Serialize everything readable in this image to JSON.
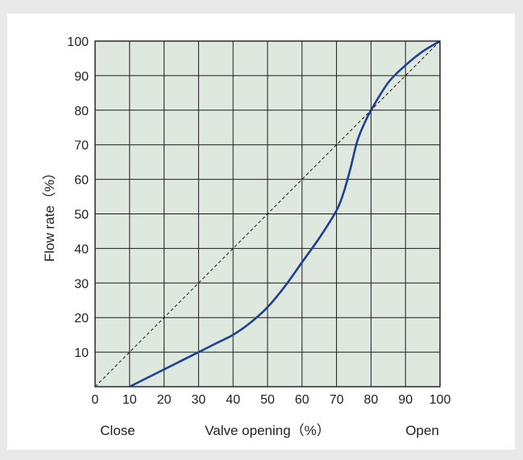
{
  "chart_data": {
    "type": "line",
    "title": "",
    "xlabel": "Valve opening（%）",
    "ylabel": "Flow rate（%）",
    "x_end_labels": {
      "left": "Close",
      "right": "Open"
    },
    "xlim": [
      0,
      100
    ],
    "ylim": [
      0,
      100
    ],
    "x_ticks": [
      0,
      10,
      20,
      30,
      40,
      50,
      60,
      70,
      80,
      90,
      100
    ],
    "y_ticks": [
      10,
      20,
      30,
      40,
      50,
      60,
      70,
      80,
      90,
      100
    ],
    "grid": true,
    "colors": {
      "plot_background": "#dfe8df",
      "grid": "#1a1a1a",
      "curve": "#1f3f94",
      "reference_line": "#1a1a1a",
      "page_background": "#e9e9ea"
    },
    "series": [
      {
        "style": "solid",
        "x": [
          10,
          15,
          20,
          25,
          30,
          35,
          40,
          45,
          50,
          55,
          60,
          65,
          70,
          72,
          74,
          76,
          78,
          80,
          85,
          90,
          95,
          100
        ],
        "y": [
          0,
          2.5,
          5,
          7.5,
          10,
          12.5,
          15,
          18.5,
          23,
          29,
          36,
          43,
          51,
          56,
          63,
          71,
          76,
          80,
          88,
          93,
          97,
          100
        ]
      },
      {
        "style": "dashed",
        "x": [
          0,
          100
        ],
        "y": [
          0,
          100
        ]
      }
    ]
  }
}
